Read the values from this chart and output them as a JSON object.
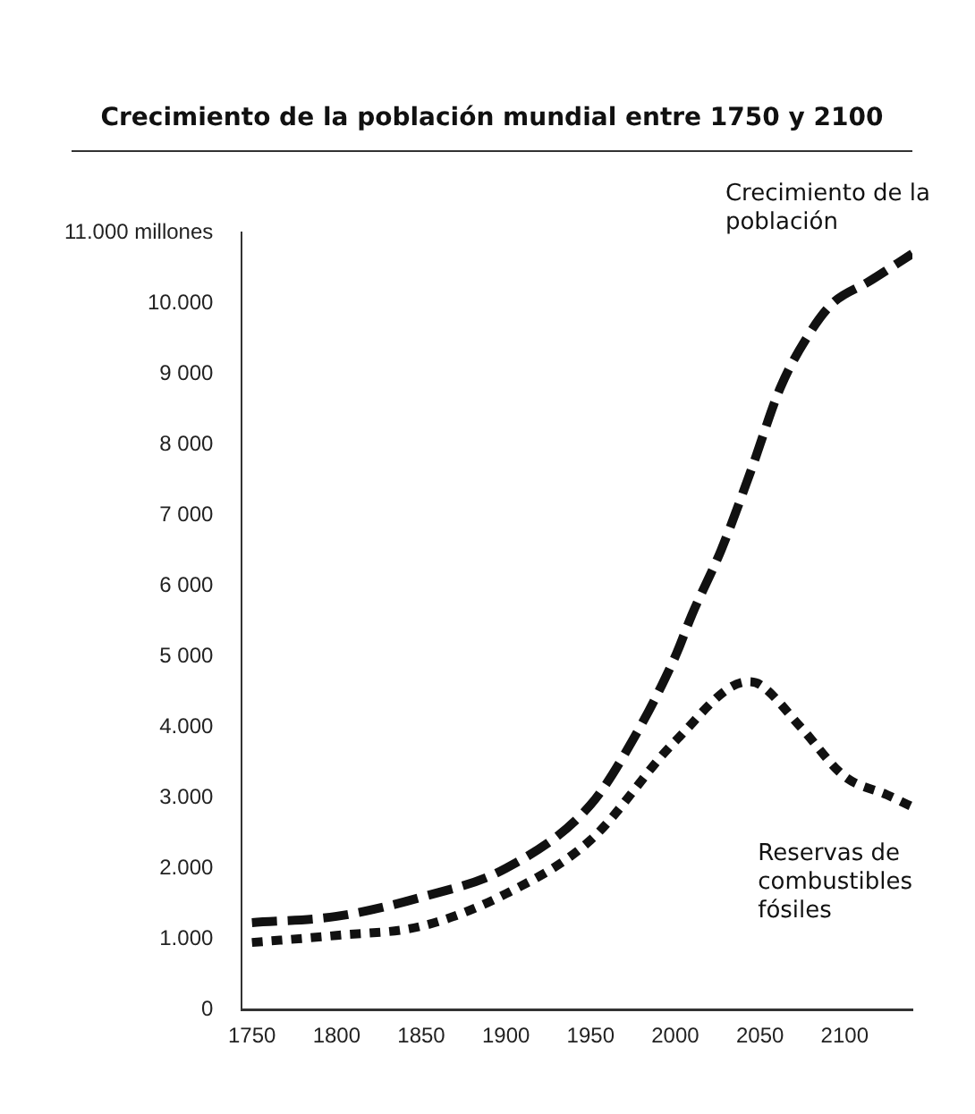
{
  "chart_data": {
    "type": "line",
    "title": "Crecimiento de la población mundial entre 1750 y 2100",
    "xlim": [
      1744,
      2140
    ],
    "xticks": [
      1750,
      1800,
      1850,
      1900,
      1950,
      2000,
      2050,
      2100
    ],
    "ylim": [
      0,
      11000
    ],
    "yticks": [
      0,
      {
        "value": 1000,
        "label": "1.000"
      },
      {
        "value": 2000,
        "label": "2.000"
      },
      {
        "value": 3000,
        "label": "3.000"
      },
      {
        "value": 4000,
        "label": "4.000"
      },
      {
        "value": 5000,
        "label": "5 000"
      },
      {
        "value": 6000,
        "label": "6 000"
      },
      {
        "value": 7000,
        "label": "7 000"
      },
      {
        "value": 8000,
        "label": "8 000"
      },
      {
        "value": 9000,
        "label": "9 000"
      },
      {
        "value": 10000,
        "label": "10.000"
      },
      {
        "value": 11000,
        "label": "11.000 millones"
      }
    ],
    "grid": false,
    "legend": false,
    "marker": "none",
    "series": [
      {
        "name": "Crecimiento de la población",
        "color": "#111111",
        "line_style": "dashed",
        "x": [
          1750,
          1800,
          1850,
          1900,
          1950,
          1975,
          2000,
          2010,
          2027,
          2045,
          2062,
          2080,
          2093,
          2114,
          2140
        ],
        "values": [
          1230,
          1320,
          1590,
          2000,
          2900,
          3820,
          5000,
          5600,
          6500,
          7650,
          8800,
          9600,
          10000,
          10300,
          10700
        ]
      },
      {
        "name": "Reservas de combustibles fósiles",
        "color": "#111111",
        "line_style": "dotted",
        "x": [
          1750,
          1800,
          1850,
          1900,
          1950,
          2000,
          2043,
          2050,
          2074,
          2100,
          2125,
          2140
        ],
        "values": [
          950,
          1050,
          1180,
          1640,
          2400,
          3800,
          4640,
          4600,
          4000,
          3300,
          3040,
          2870
        ]
      }
    ]
  }
}
